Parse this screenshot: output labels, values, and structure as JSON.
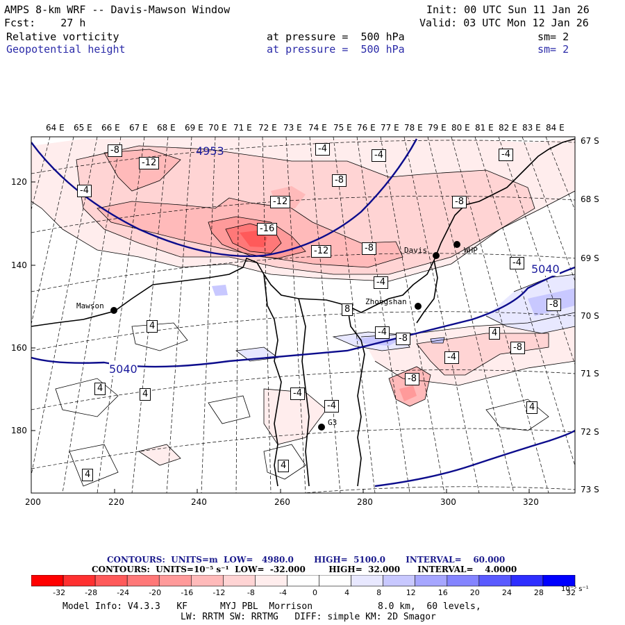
{
  "header": {
    "title": "AMPS 8-km WRF -- Davis-Mawson Window",
    "init": "Init: 00 UTC Sun 11 Jan 26",
    "forecast": "Fcst:    27 h",
    "valid": "Valid: 03 UTC Mon 12 Jan 26",
    "field1_name": "Relative vorticity",
    "field1_level": "at pressure =  500 hPa",
    "field1_sm": "sm= 2",
    "field2_name": "Geopotential height",
    "field2_level": "at pressure =  500 hPa",
    "field2_sm": "sm= 2"
  },
  "map": {
    "lon_labels": [
      "64 E",
      "65 E",
      "66 E",
      "67 E",
      "68 E",
      "69 E",
      "70 E",
      "71 E",
      "72 E",
      "73 E",
      "74 E",
      "75 E",
      "76 E",
      "77 E",
      "78 E",
      "79 E",
      "80 E",
      "81 E",
      "82 E",
      "83 E",
      "84 E"
    ],
    "lat_labels": [
      "67 S",
      "68 S",
      "69 S",
      "70 S",
      "71 S",
      "72 S",
      "73 S"
    ],
    "x_ticks": [
      "200",
      "220",
      "240",
      "260",
      "280",
      "300",
      "320"
    ],
    "y_ticks": [
      "120",
      "140",
      "160",
      "180"
    ],
    "stations": [
      {
        "name": "Mawson"
      },
      {
        "name": "Davis"
      },
      {
        "name": "WHP"
      },
      {
        "name": "Zhongshan"
      },
      {
        "name": "G3"
      }
    ],
    "height_labels": [
      "4953",
      "5040",
      "5040"
    ],
    "vort_labels": [
      "-8",
      "-12",
      "-4",
      "-12",
      "-16",
      "-12",
      "-8",
      "-4",
      "-8",
      "-8",
      "-4",
      "-4",
      "-4",
      "-8",
      "4",
      "4",
      "4",
      "4",
      "4",
      "-4",
      "-4",
      "-4",
      "-8",
      "-8",
      "-8",
      "-4",
      "4",
      "4",
      "-4",
      "8",
      "4"
    ],
    "colors": {
      "height_contour": "#0c0c8c",
      "vort_contour": "#000000",
      "border": "#000000"
    }
  },
  "footer": {
    "contours1": "CONTOURS:  UNITS=m  LOW=   4980.0       HIGH=  5100.0       INTERVAL=    60.000",
    "contours2": "CONTOURS:  UNITS=10⁻⁵ s⁻¹  LOW=  -32.000        HIGH=  32.000      INTERVAL=    4.0000",
    "model_info": "Model Info: V4.3.3   KF      MYJ PBL  Morrison            8.0 km,  60 levels,",
    "physics": "LW: RRTM SW: RRTMG   DIFF: simple KM: 2D Smagor"
  },
  "colorbar": {
    "labels": [
      "-32",
      "-28",
      "-24",
      "-20",
      "-16",
      "-12",
      "-8",
      "-4",
      "0",
      "4",
      "8",
      "12",
      "16",
      "20",
      "24",
      "28",
      "32"
    ],
    "units": "10⁻⁵ s⁻¹",
    "colors": [
      "#ff0000",
      "#ff3030",
      "#ff5a5a",
      "#ff7878",
      "#ff9a9a",
      "#ffbaba",
      "#ffd4d4",
      "#ffeded",
      "#ffffff",
      "#ffffff",
      "#e8e8ff",
      "#c8c8ff",
      "#a6a6ff",
      "#8484ff",
      "#5a5aff",
      "#2e2eff",
      "#0000ff"
    ]
  }
}
